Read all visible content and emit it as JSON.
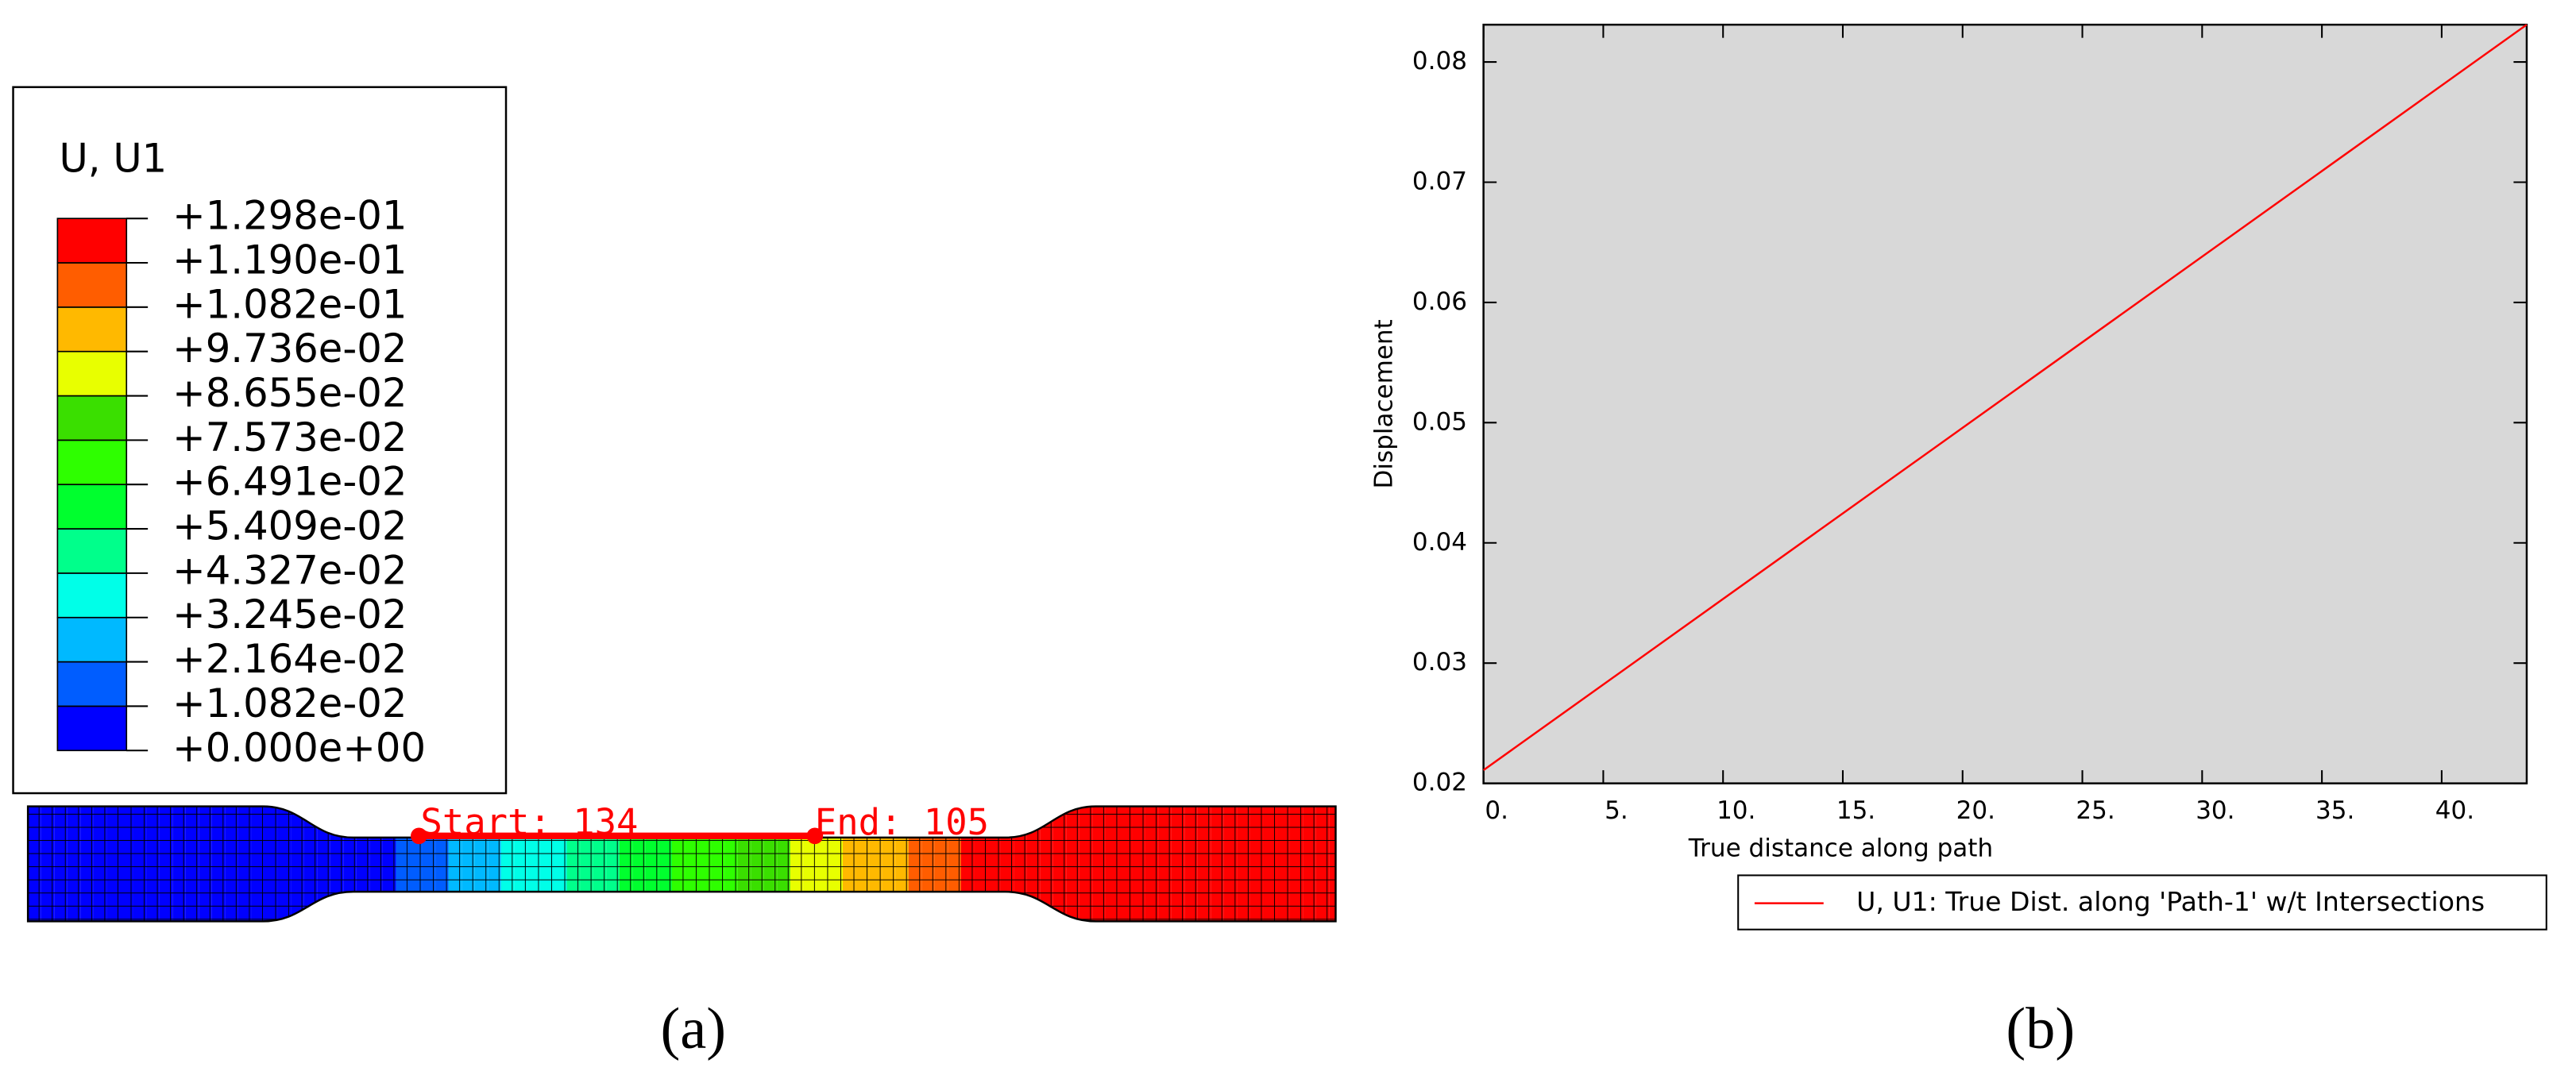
{
  "chart_data": [
    {
      "type": "contour",
      "label": "(a)",
      "title": "U, U1",
      "levels": [
        {
          "value": 0,
          "label": "+0.000e+00"
        },
        {
          "value": 0.01082,
          "label": "+1.082e-02"
        },
        {
          "value": 0.02164,
          "label": "+2.164e-02"
        },
        {
          "value": 0.03245,
          "label": "+3.245e-02"
        },
        {
          "value": 0.04327,
          "label": "+4.327e-02"
        },
        {
          "value": 0.05409,
          "label": "+5.409e-02"
        },
        {
          "value": 0.06491,
          "label": "+6.491e-02"
        },
        {
          "value": 0.07573,
          "label": "+7.573e-02"
        },
        {
          "value": 0.08655,
          "label": "+8.655e-02"
        },
        {
          "value": 0.09736,
          "label": "+9.736e-02"
        },
        {
          "value": 0.1082,
          "label": "+1.082e-01"
        },
        {
          "value": 0.119,
          "label": "+1.190e-01"
        },
        {
          "value": 0.1298,
          "label": "+1.298e-01"
        }
      ],
      "colors": [
        "#0000ff",
        "#005dff",
        "#00b9ff",
        "#00ffe8",
        "#00ff8b",
        "#00ff2e",
        "#2eff00",
        "#3adf00",
        "#e8ff00",
        "#ffb900",
        "#ff5d00",
        "#ff0000"
      ],
      "path_start": "Start: 134",
      "path_end": "End: 105"
    },
    {
      "type": "line",
      "label": "(b)",
      "xlabel": "True distance along path",
      "ylabel": "Displacement",
      "x": [
        0,
        43.55
      ],
      "series": [
        {
          "name": "U, U1: True Dist. along 'Path-1' w/t Intersections",
          "color": "#ff0000",
          "values": [
            0.0211,
            0.0831
          ]
        }
      ],
      "xlim": [
        0,
        43.55
      ],
      "ylim": [
        0.02,
        0.0831
      ],
      "xticks": [
        {
          "value": 0,
          "label": "0."
        },
        {
          "value": 5,
          "label": "5."
        },
        {
          "value": 10,
          "label": "10."
        },
        {
          "value": 15,
          "label": "15."
        },
        {
          "value": 20,
          "label": "20."
        },
        {
          "value": 25,
          "label": "25."
        },
        {
          "value": 30,
          "label": "30."
        },
        {
          "value": 35,
          "label": "35."
        },
        {
          "value": 40,
          "label": "40."
        }
      ],
      "yticks": [
        0.02,
        0.03,
        0.04,
        0.05,
        0.06,
        0.07,
        0.08
      ],
      "background": "#d8d8d8"
    }
  ]
}
